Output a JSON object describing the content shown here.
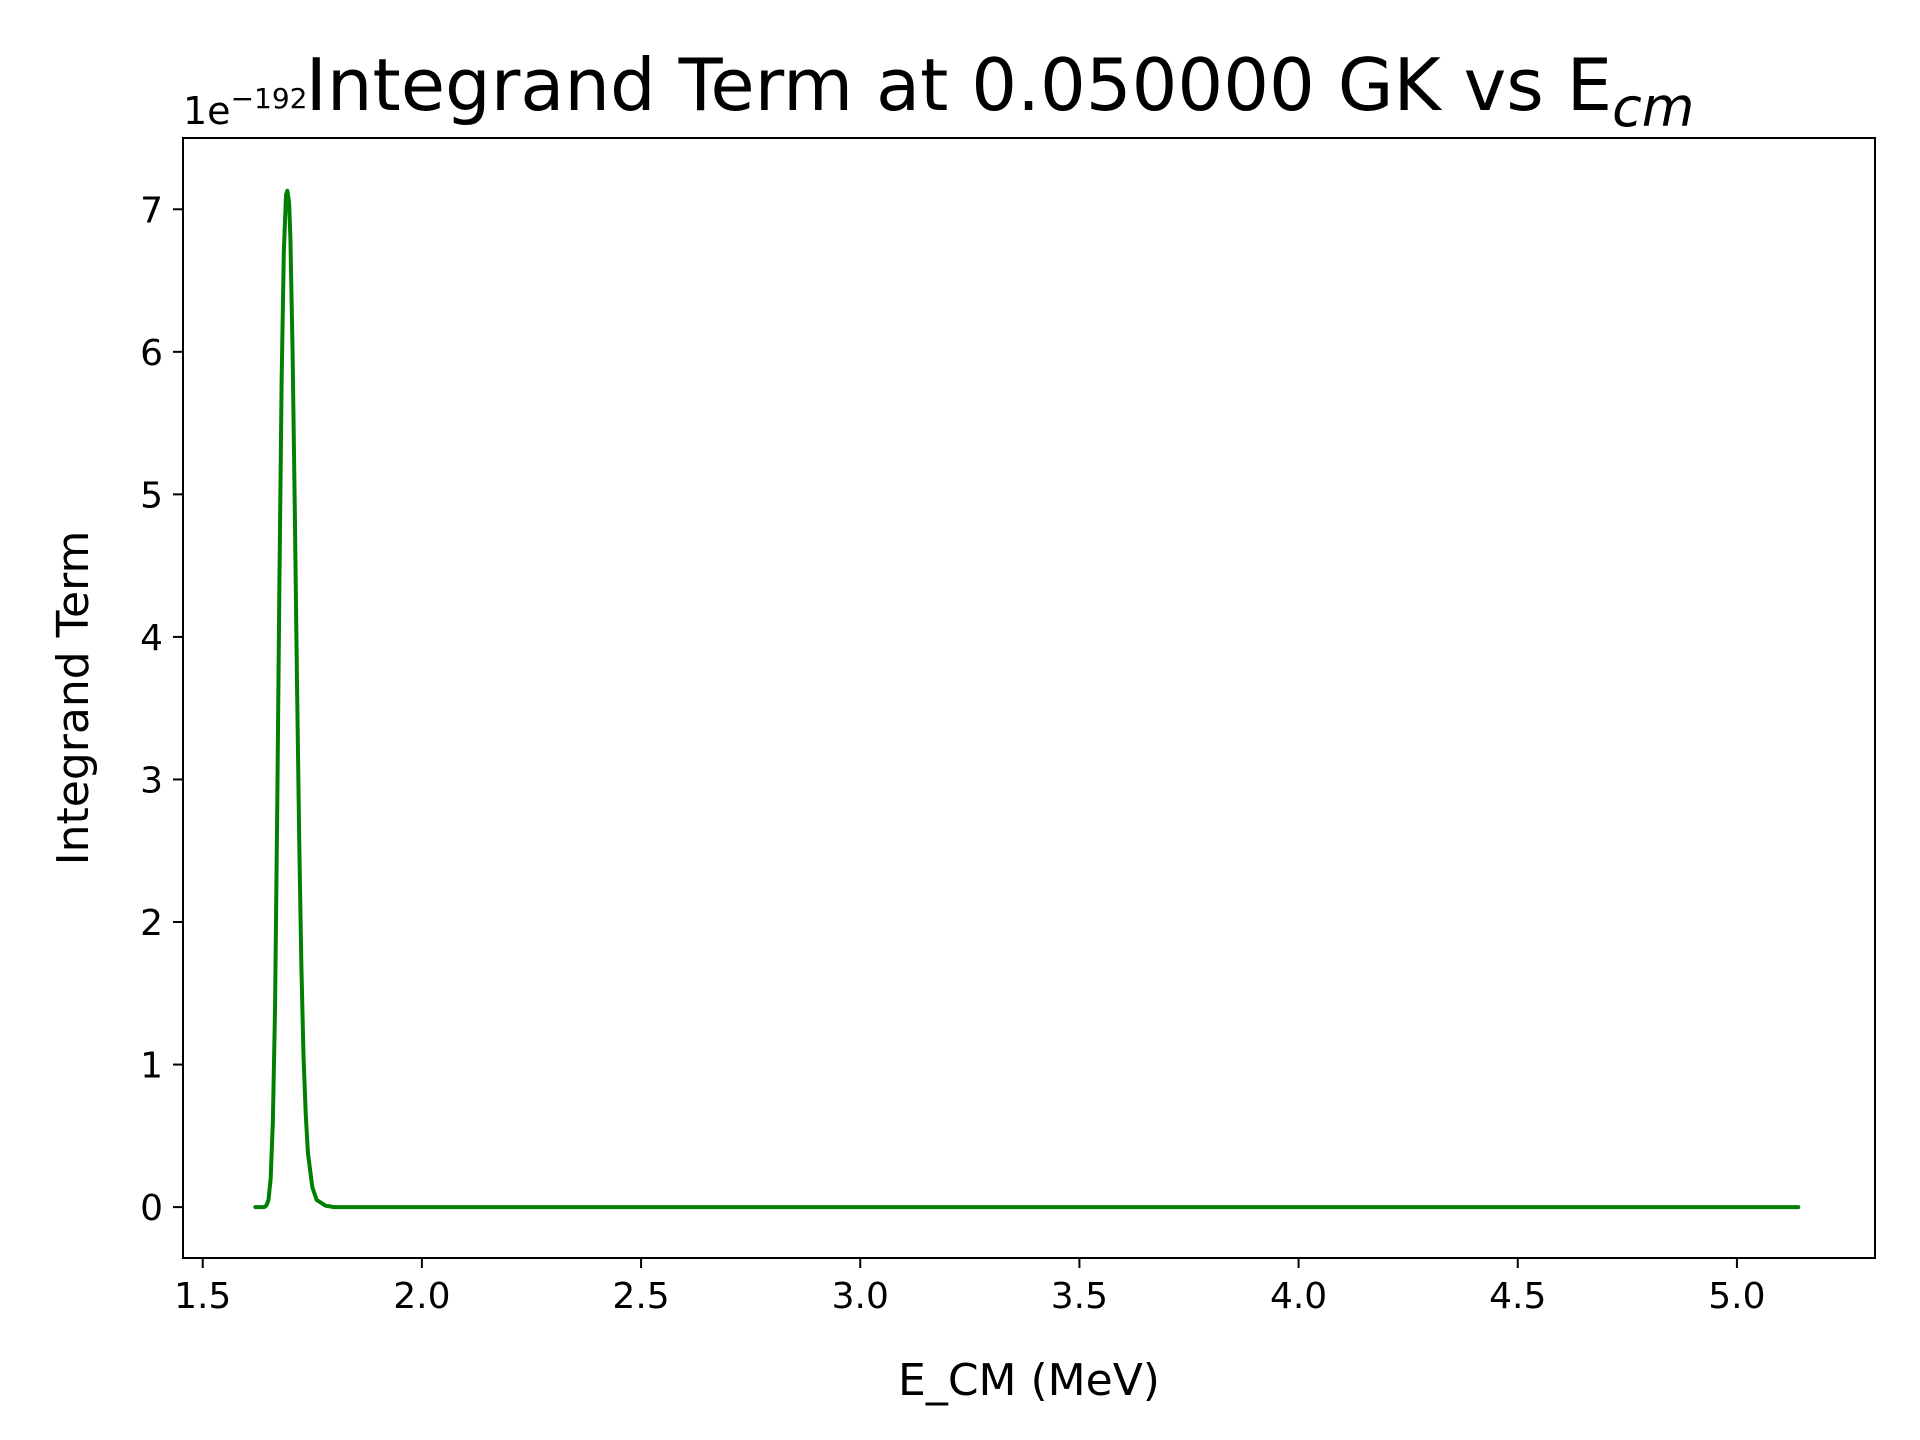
{
  "chart_data": {
    "type": "line",
    "title": "Integrand Term at 0.050000 GK vs E",
    "title_subscript": "cm",
    "xlabel": "E_CM (MeV)",
    "ylabel": "Integrand Term",
    "y_offset_base": "1e",
    "y_offset_exponent": "−192",
    "xlim": [
      1.455,
      5.315
    ],
    "ylim": [
      -0.357,
      7.5
    ],
    "xticks": [
      1.5,
      2.0,
      2.5,
      3.0,
      3.5,
      4.0,
      4.5,
      5.0
    ],
    "xtick_labels": [
      "1.5",
      "2.0",
      "2.5",
      "3.0",
      "3.5",
      "4.0",
      "4.5",
      "5.0"
    ],
    "yticks": [
      0,
      1,
      2,
      3,
      4,
      5,
      6,
      7
    ],
    "ytick_labels": [
      "0",
      "1",
      "2",
      "3",
      "4",
      "5",
      "6",
      "7"
    ],
    "grid": false,
    "legend": "none",
    "series": [
      {
        "color": "#008000",
        "x": [
          1.62,
          1.64,
          1.645,
          1.65,
          1.655,
          1.66,
          1.665,
          1.67,
          1.675,
          1.68,
          1.685,
          1.69,
          1.693,
          1.697,
          1.7,
          1.705,
          1.71,
          1.715,
          1.72,
          1.725,
          1.73,
          1.735,
          1.74,
          1.75,
          1.76,
          1.78,
          1.8,
          2.0,
          3.0,
          4.0,
          5.0,
          5.14
        ],
        "y": [
          0,
          0.0,
          0.01,
          0.05,
          0.2,
          0.6,
          1.4,
          2.8,
          4.4,
          5.8,
          6.7,
          7.1,
          7.13,
          7.05,
          6.8,
          6.0,
          4.9,
          3.7,
          2.6,
          1.7,
          1.05,
          0.65,
          0.38,
          0.14,
          0.05,
          0.01,
          0.0,
          0,
          0,
          0,
          0,
          0
        ]
      }
    ]
  }
}
